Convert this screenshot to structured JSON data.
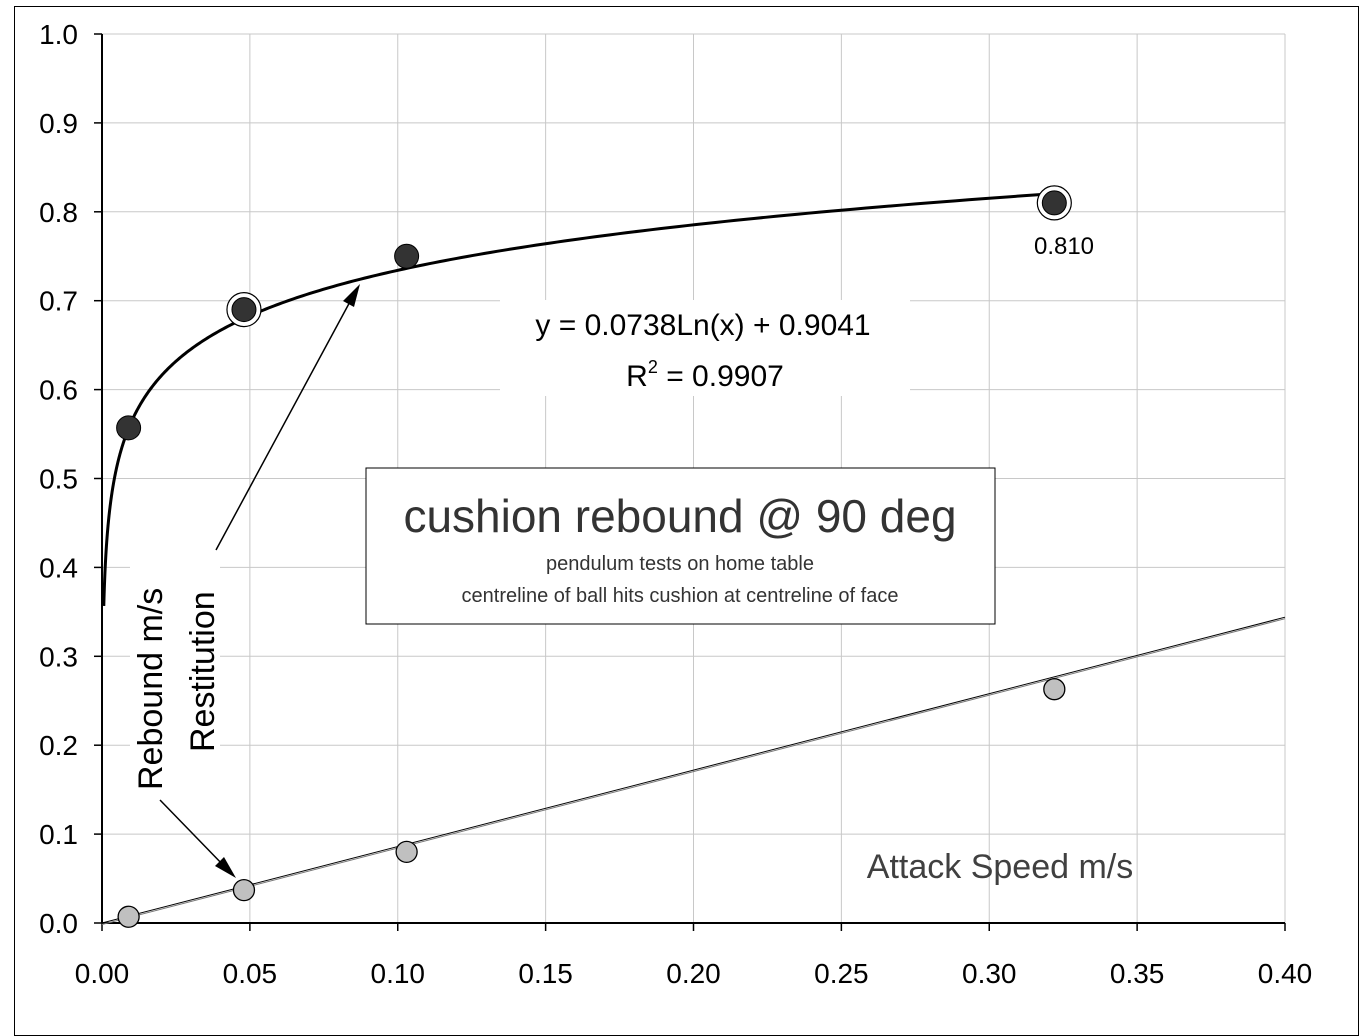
{
  "chart_data": {
    "type": "scatter",
    "title": "cushion rebound @ 90 deg",
    "subtitle_lines": [
      "pendulum tests on home table",
      "centreline of ball hits cushion at centreline of face"
    ],
    "xlabel": "Attack Speed   m/s",
    "ylabel_lines": [
      "Rebound   m/s",
      "Restitution"
    ],
    "xlim": [
      0,
      0.4
    ],
    "ylim": [
      0,
      1.0
    ],
    "x_ticks": [
      "0.00",
      "0.05",
      "0.10",
      "0.15",
      "0.20",
      "0.25",
      "0.30",
      "0.35",
      "0.40"
    ],
    "y_ticks": [
      "0.0",
      "0.1",
      "0.2",
      "0.3",
      "0.4",
      "0.5",
      "0.6",
      "0.7",
      "0.8",
      "0.9",
      "1.0"
    ],
    "grid": true,
    "series": [
      {
        "name": "Restitution",
        "color": "#333333",
        "x": [
          0.009,
          0.048,
          0.103,
          0.322
        ],
        "y": [
          0.557,
          0.69,
          0.75,
          0.81
        ],
        "highlighted": [
          false,
          true,
          false,
          true
        ],
        "trendline": {
          "kind": "log",
          "a": 0.0738,
          "b": 0.9041,
          "x_range": [
            0,
            0.322
          ]
        }
      },
      {
        "name": "Rebound m/s",
        "color": "#c0c0c0",
        "x": [
          0.009,
          0.048,
          0.103,
          0.322
        ],
        "y": [
          0.007,
          0.037,
          0.08,
          0.263
        ],
        "trendline": {
          "kind": "linear",
          "slope": 0.86,
          "intercept": 0.0,
          "x_range": [
            0,
            0.4
          ]
        }
      }
    ],
    "equation_text": "y = 0.0738Ln(x) + 0.9041",
    "r2_prefix": "R",
    "r2_sup": "2",
    "r2_value": " = 0.9907",
    "point_label": "0.810"
  }
}
